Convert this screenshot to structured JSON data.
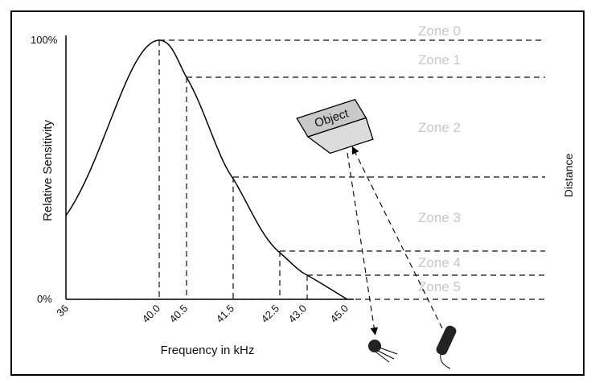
{
  "axes": {
    "y_top": "100%",
    "y_bottom": "0%",
    "y_title": "Relative Sensitivity",
    "x_title": "Frequency in kHz",
    "right_title": "Distance",
    "x_ticks": [
      "36",
      "40.0",
      "40.5",
      "41.5",
      "42.5",
      "43.0",
      "45.0"
    ]
  },
  "object": {
    "label": "Object"
  },
  "zones": [
    "Zone 0",
    "Zone 1",
    "Zone 2",
    "Zone 3",
    "Zone 4",
    "Zone 5"
  ]
}
